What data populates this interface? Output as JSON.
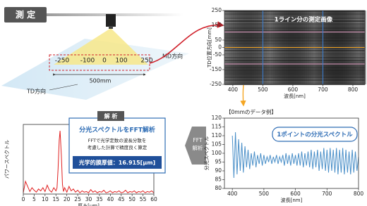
{
  "header": {
    "title": "測 定"
  },
  "stage": {
    "scale_labels": [
      -250,
      -100,
      0,
      100,
      250
    ],
    "width_label": "500mm",
    "md_label": "MD方向",
    "td_label": "TD方向"
  },
  "fft_arrow": {
    "line1": "FFT",
    "line2": "解析"
  },
  "analysis": {
    "tab": "解 析",
    "title": "分光スペクトルをFFT解析",
    "line1": "FFTで光学定数の波長分散を",
    "line2": "考慮した計算で精度良く算定",
    "result": "光学的膜厚値：16.915[μm]"
  },
  "spectrum_note": "【0mmのデータ例】",
  "chart_data": [
    {
      "type": "image",
      "title": "1ライン分の測定画像",
      "x_label": "波長[nm]",
      "y_label": "TD位置方向[mm]",
      "xlim": [
        372,
        840
      ],
      "xticks": [
        400,
        500,
        600,
        700,
        800
      ],
      "ylim": [
        -250,
        250
      ],
      "yticks": [
        250,
        150,
        50,
        0,
        -50,
        -150,
        -250
      ],
      "hlines": [
        {
          "value": 105,
          "color": "#e9a3c9"
        },
        {
          "value": 0,
          "color": "#f5a623"
        },
        {
          "value": -112,
          "color": "#e9a3c9"
        }
      ],
      "vlines": [
        {
          "value": 500,
          "color": "#3a7fd5"
        },
        {
          "value": 700,
          "color": "#3a7fd5"
        }
      ]
    },
    {
      "type": "line",
      "title": "1ポイントの分光スペクトル",
      "x_label": "波長[nm]",
      "y_label": "分光スペクトル",
      "xlim": [
        375,
        800
      ],
      "xticks": [
        400,
        500,
        600,
        700,
        800
      ],
      "ylim": [
        80,
        120
      ],
      "yticks": [
        80,
        85,
        90,
        95,
        100,
        105,
        110,
        115,
        120
      ],
      "series": [
        {
          "color": "#4a8fc8",
          "x": [
            400,
            405,
            410,
            415,
            420,
            425,
            430,
            435,
            440,
            445,
            450,
            455,
            460,
            465,
            470,
            475,
            480,
            485,
            490,
            495,
            500,
            505,
            510,
            515,
            520,
            525,
            530,
            535,
            540,
            545,
            550,
            555,
            560,
            565,
            570,
            575,
            580,
            585,
            590,
            595,
            600,
            605,
            610,
            615,
            620,
            625,
            630,
            635,
            640,
            645,
            650,
            655,
            660,
            665,
            670,
            675,
            680,
            685,
            690,
            695,
            700,
            705,
            710,
            715,
            720,
            725,
            730,
            735,
            740,
            745,
            750,
            755,
            760,
            765,
            770,
            775,
            780,
            785,
            790,
            795,
            800
          ],
          "values": [
            110,
            86,
            112,
            88,
            108,
            90,
            106,
            89,
            104,
            92,
            102,
            91,
            100,
            93,
            101,
            92,
            99,
            94,
            100,
            93,
            99,
            94,
            98,
            95,
            99,
            94,
            98,
            95,
            99,
            94,
            98,
            95,
            99,
            93,
            100,
            94,
            99,
            93,
            100,
            94,
            99,
            93,
            100,
            93,
            101,
            92,
            100,
            93,
            101,
            92,
            102,
            91,
            101,
            92,
            102,
            90,
            101,
            91,
            103,
            90,
            102,
            89,
            103,
            90,
            102,
            89,
            103,
            88,
            102,
            89,
            103,
            88,
            102,
            89,
            101,
            88,
            102,
            89,
            101,
            90,
            98
          ]
        }
      ]
    },
    {
      "type": "line",
      "x_label": "厚み[μm]",
      "y_label": "パワースペクトル",
      "xlim": [
        0,
        60
      ],
      "xticks": [
        0,
        5,
        10,
        15,
        20,
        25,
        30,
        35,
        40,
        45,
        50,
        55,
        60
      ],
      "ylim": [
        0,
        1.1
      ],
      "series": [
        {
          "color": "#e02020",
          "x": [
            0,
            1,
            2,
            3,
            4,
            5,
            6,
            7,
            8,
            9,
            10,
            11,
            12,
            13,
            14,
            15,
            15.5,
            16,
            16.5,
            16.9,
            17.5,
            18,
            18.5,
            19,
            20,
            21,
            22,
            23,
            24,
            25,
            26,
            27,
            28,
            29,
            30,
            31,
            32,
            33,
            34,
            35,
            36,
            37,
            38,
            39,
            40,
            41,
            42,
            43,
            44,
            45,
            46,
            47,
            48,
            49,
            50,
            51,
            52,
            53,
            54,
            55,
            56,
            57,
            58,
            59,
            60
          ],
          "values": [
            0.02,
            0.2,
            0.12,
            0.04,
            0.1,
            0.06,
            0.03,
            0.08,
            0.05,
            0.1,
            0.04,
            0.14,
            0.06,
            0.03,
            0.1,
            0.05,
            0.1,
            0.4,
            0.85,
            1.0,
            0.6,
            0.15,
            0.04,
            0.1,
            0.03,
            0.12,
            0.05,
            0.08,
            0.03,
            0.06,
            0.02,
            0.05,
            0.03,
            0.04,
            0.02,
            0.07,
            0.03,
            0.05,
            0.02,
            0.04,
            0.03,
            0.06,
            0.02,
            0.03,
            0.05,
            0.02,
            0.04,
            0.03,
            0.05,
            0.02,
            0.03,
            0.06,
            0.02,
            0.04,
            0.03,
            0.05,
            0.02,
            0.04,
            0.03,
            0.05,
            0.02,
            0.04,
            0.03,
            0.05,
            0.02
          ]
        }
      ]
    }
  ]
}
